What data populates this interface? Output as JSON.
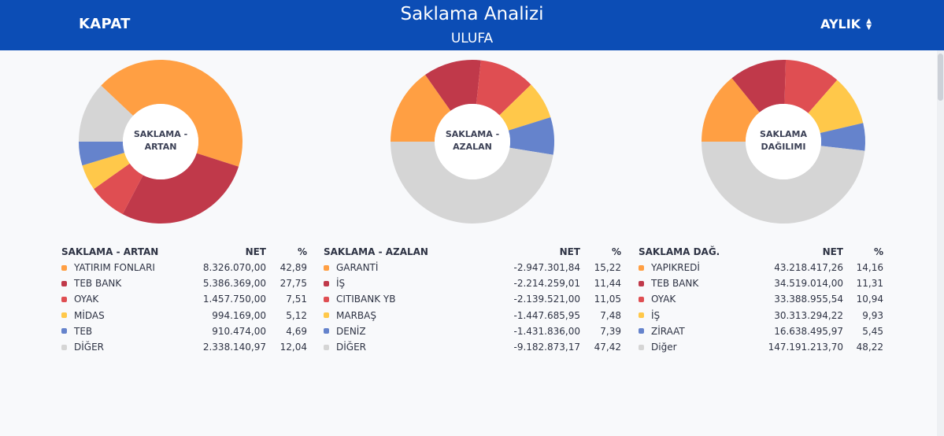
{
  "header": {
    "close_label": "KAPAT",
    "title": "Saklama Analizi",
    "subtitle": "ULUFA",
    "period_label": "AYLIK"
  },
  "colors": {
    "header_bg": "#0c4db5",
    "palette": [
      "#ff9f43",
      "#c0394a",
      "#df4e52",
      "#ffc84a",
      "#6583cc",
      "#d5d5d5"
    ]
  },
  "chart_data": [
    {
      "type": "pie",
      "title": "SAKLAMA - ARTAN",
      "center_label": [
        "SAKLAMA -",
        "ARTAN"
      ],
      "columns": [
        "SAKLAMA - ARTAN",
        "NET",
        "%"
      ],
      "categories": [
        "YATIRIM FONLARI",
        "TEB BANK",
        "OYAK",
        "MİDAS",
        "TEB",
        "DİĞER"
      ],
      "net": [
        "8.326.070,00",
        "5.386.369,00",
        "1.457.750,00",
        "994.169,00",
        "910.474,00",
        "2.338.140,97"
      ],
      "pct": [
        "42,89",
        "27,75",
        "7,51",
        "5,12",
        "4,69",
        "12,04"
      ],
      "values": [
        42.89,
        27.75,
        7.51,
        5.12,
        4.69,
        12.04
      ],
      "slice_order": [
        5,
        0,
        1,
        2,
        3,
        4
      ],
      "start_angle_deg": 180
    },
    {
      "type": "pie",
      "title": "SAKLAMA - AZALAN",
      "center_label": [
        "SAKLAMA -",
        "AZALAN"
      ],
      "columns": [
        "SAKLAMA - AZALAN",
        "NET",
        "%"
      ],
      "categories": [
        "GARANTİ",
        "İŞ",
        "CITIBANK YB",
        "MARBAŞ",
        "DENİZ",
        "DİĞER"
      ],
      "net": [
        "-2.947.301,84",
        "-2.214.259,01",
        "-2.139.521,00",
        "-1.447.685,95",
        "-1.431.836,00",
        "-9.182.873,17"
      ],
      "pct": [
        "15,22",
        "11,44",
        "11,05",
        "7,48",
        "7,39",
        "47,42"
      ],
      "values": [
        15.22,
        11.44,
        11.05,
        7.48,
        7.39,
        47.42
      ],
      "slice_order": [
        0,
        1,
        2,
        3,
        4,
        5
      ],
      "start_angle_deg": 180
    },
    {
      "type": "pie",
      "title": "SAKLAMA DAĞ.",
      "center_label": [
        "SAKLAMA",
        "DAĞILIMI"
      ],
      "columns": [
        "SAKLAMA DAĞ.",
        "NET",
        "%"
      ],
      "categories": [
        "YAPIKREDİ",
        "TEB BANK",
        "OYAK",
        "İŞ",
        "ZİRAAT",
        "Diğer"
      ],
      "net": [
        "43.218.417,26",
        "34.519.014,00",
        "33.388.955,54",
        "30.313.294,22",
        "16.638.495,97",
        "147.191.213,70"
      ],
      "pct": [
        "14,16",
        "11,31",
        "10,94",
        "9,93",
        "5,45",
        "48,22"
      ],
      "values": [
        14.16,
        11.31,
        10.94,
        9.93,
        5.45,
        48.22
      ],
      "slice_order": [
        0,
        1,
        2,
        3,
        4,
        5
      ],
      "start_angle_deg": 180
    }
  ]
}
